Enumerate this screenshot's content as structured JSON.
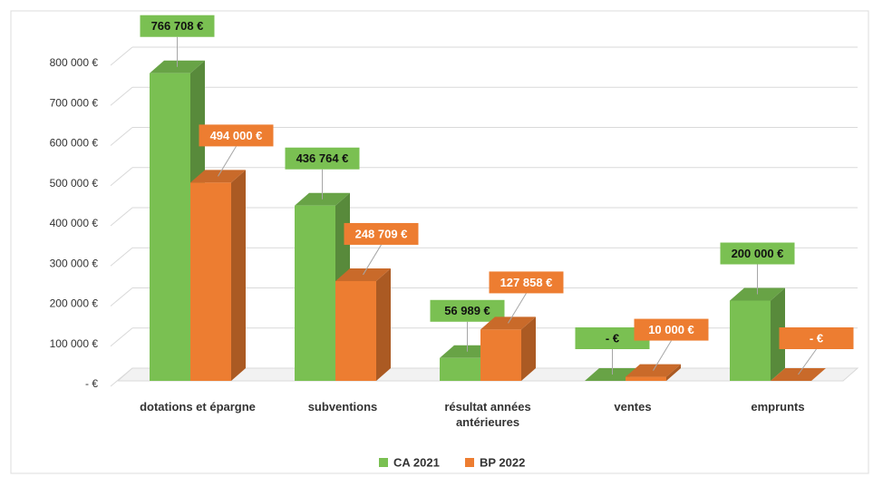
{
  "chart_data": {
    "type": "bar3d",
    "categories": [
      "dotations et épargne",
      "subventions",
      "résultat années antérieures",
      "ventes",
      "emprunts"
    ],
    "series": [
      {
        "name": "CA 2021",
        "color": "#7ac052",
        "values": [
          766708,
          436764,
          56989,
          0,
          200000
        ],
        "value_labels": [
          "766 708 €",
          "436 764 €",
          "56 989 €",
          "-  €",
          "200 000 €"
        ]
      },
      {
        "name": "BP 2022",
        "color": "#ed7d31",
        "values": [
          494000,
          248709,
          127858,
          10000,
          0
        ],
        "value_labels": [
          "494 000 €",
          "248 709 €",
          "127 858 €",
          "10 000 €",
          "-  €"
        ]
      }
    ],
    "ylim": [
      0,
      800000
    ],
    "yticks": [
      {
        "value": 0,
        "label": "-  €"
      },
      {
        "value": 100000,
        "label": "100 000 €"
      },
      {
        "value": 200000,
        "label": "200 000 €"
      },
      {
        "value": 300000,
        "label": "300 000 €"
      },
      {
        "value": 400000,
        "label": "400 000 €"
      },
      {
        "value": 500000,
        "label": "500 000 €"
      },
      {
        "value": 600000,
        "label": "600 000 €"
      },
      {
        "value": 700000,
        "label": "700 000 €"
      },
      {
        "value": 800000,
        "label": "800 000 €"
      }
    ],
    "grid": true,
    "legend": "bottom"
  }
}
